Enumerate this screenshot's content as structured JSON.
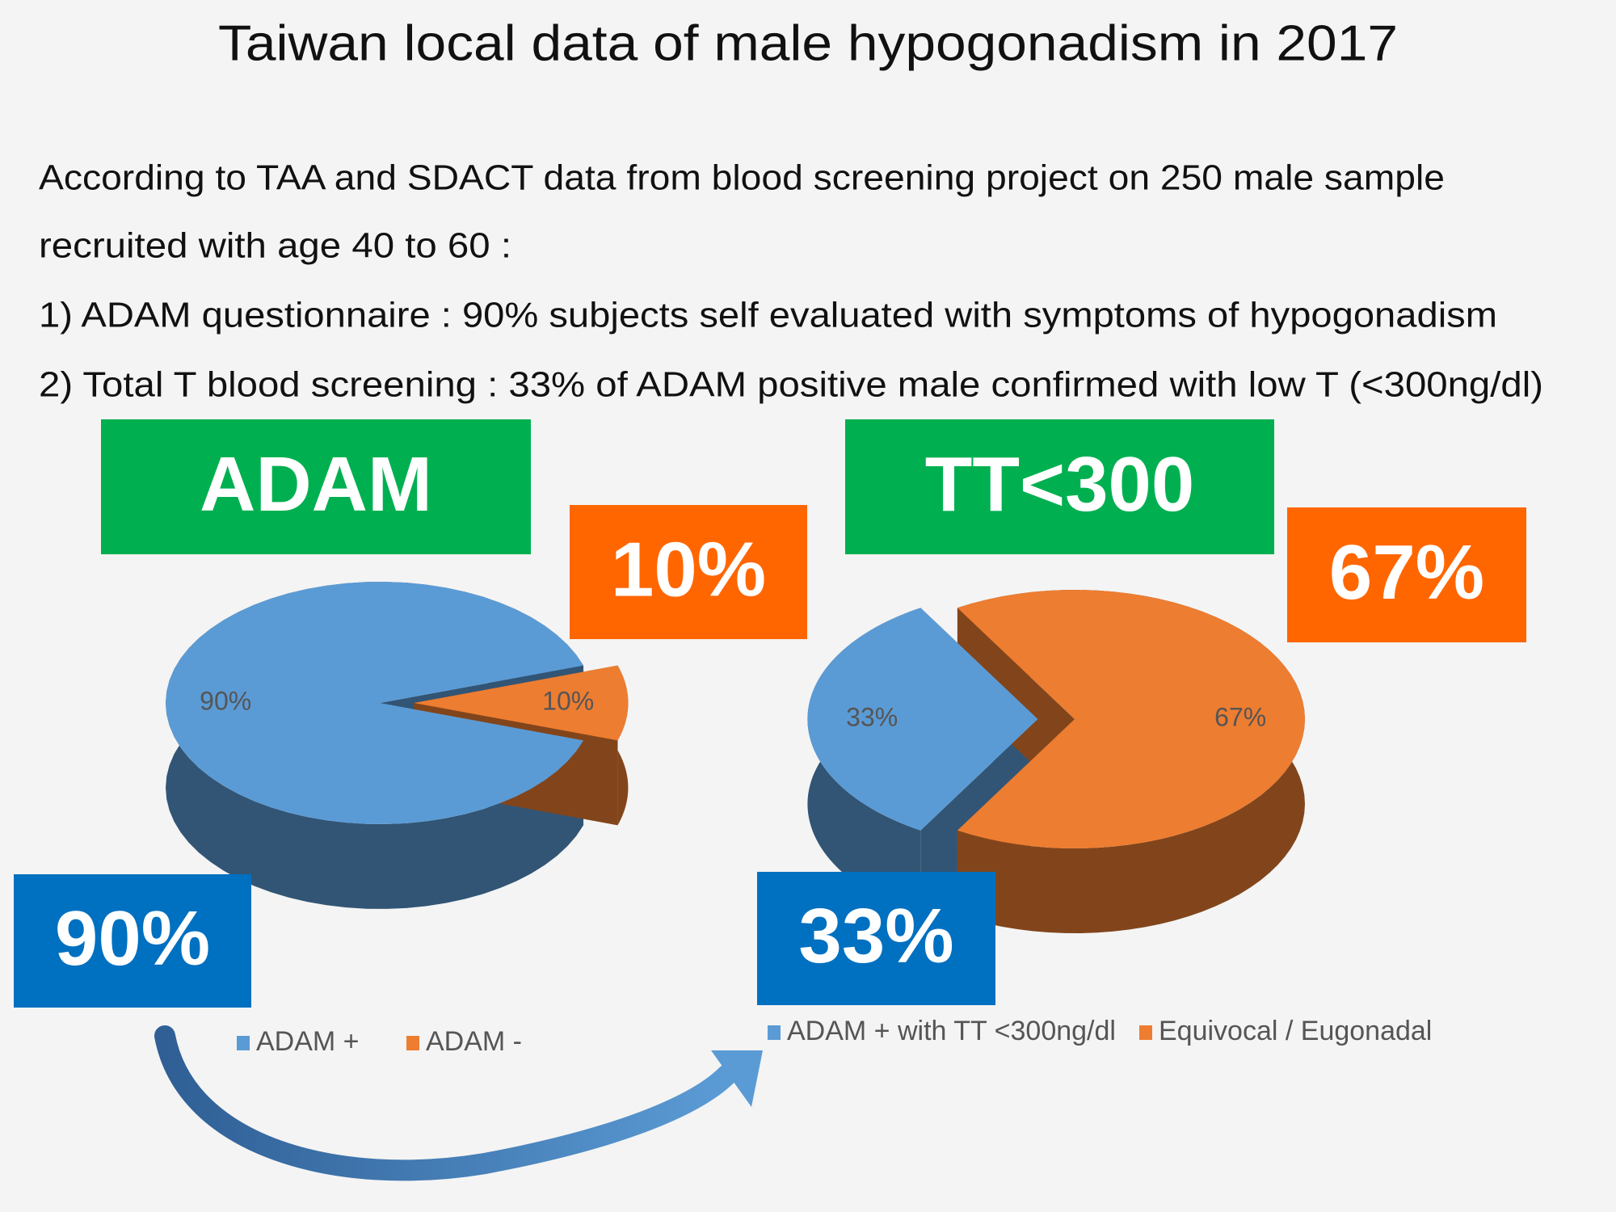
{
  "header": {
    "title": "Taiwan local data of male hypogonadism in 2017"
  },
  "body": {
    "lines": [
      "According to TAA and SDACT data from blood screening project on 250 male sample",
      "recruited with age 40 to 60 :",
      "1) ADAM questionnaire : 90% subjects self evaluated with symptoms of hypogonadism",
      "2) Total T blood screening : 33% of ADAM positive male confirmed with low T (<300ng/dl)"
    ]
  },
  "chart_data": [
    {
      "type": "pie",
      "title": "ADAM",
      "categories": [
        "ADAM +",
        "ADAM -"
      ],
      "values": [
        90,
        10
      ],
      "value_labels": [
        "90%",
        "10%"
      ],
      "callouts": [
        "90%",
        "10%"
      ],
      "colors": [
        "#5b9bd5",
        "#ed7d31"
      ],
      "legend": "bottom"
    },
    {
      "type": "pie",
      "title": "TT<300",
      "categories": [
        "ADAM + with TT <300ng/dl",
        "Equivocal / Eugonadal"
      ],
      "values": [
        33,
        67
      ],
      "value_labels": [
        "33%",
        "67%"
      ],
      "callouts": [
        "33%",
        "67%"
      ],
      "colors": [
        "#5b9bd5",
        "#ed7d31"
      ],
      "legend": "bottom"
    }
  ]
}
